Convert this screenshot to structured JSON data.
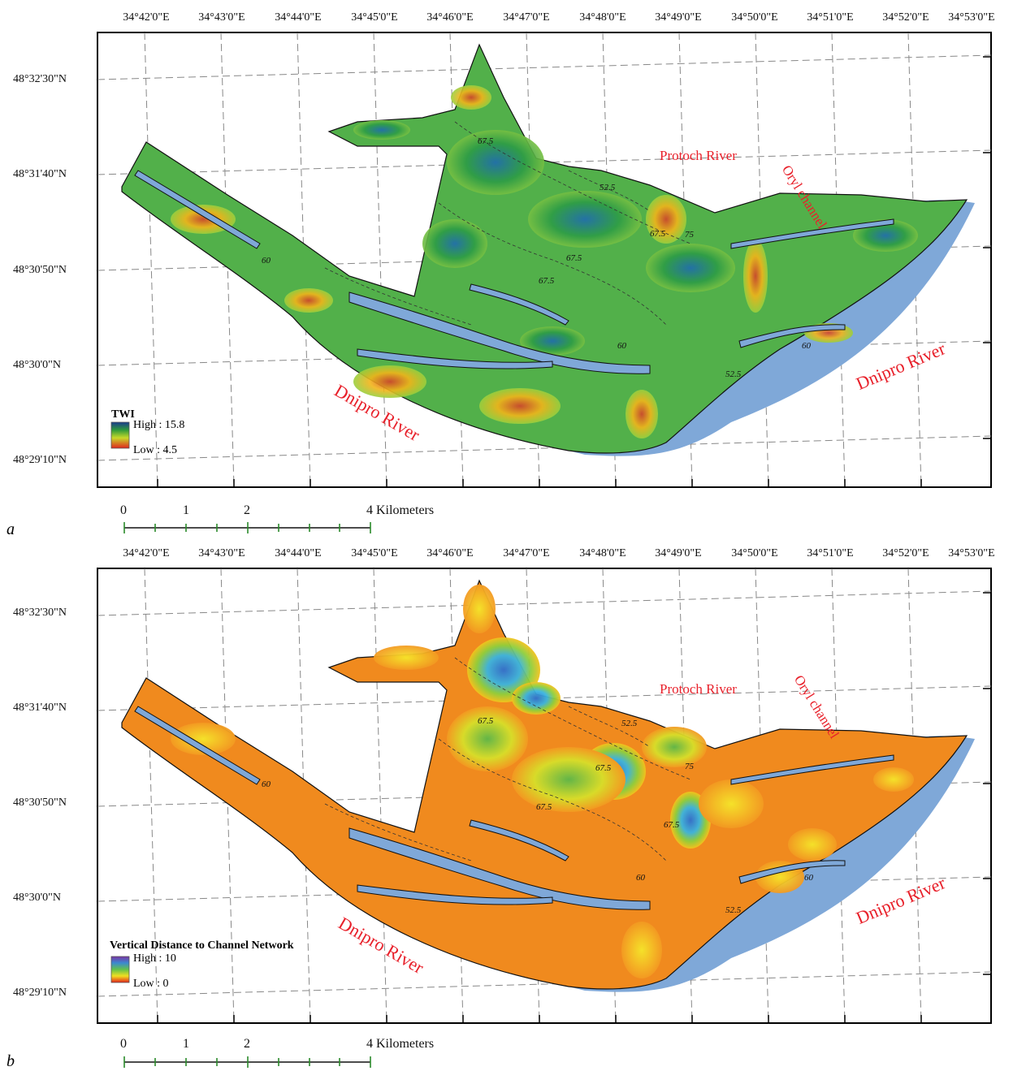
{
  "longitude_labels": [
    "34°42'0\"E",
    "34°43'0\"E",
    "34°44'0\"E",
    "34°45'0\"E",
    "34°46'0\"E",
    "34°47'0\"E",
    "34°48'0\"E",
    "34°49'0\"E",
    "34°50'0\"E",
    "34°51'0\"E",
    "34°52'0\"E",
    "34°53'0\"E"
  ],
  "latitude_labels": [
    "48°32'30\"N",
    "48°31'40\"N",
    "48°30'50\"N",
    "48°30'0\"N",
    "48°29'10\"N"
  ],
  "rivers": {
    "protoch": "Protoch River",
    "oryl": "Oryl channel",
    "dnipro": "Dnipro River"
  },
  "contours": [
    "67.5",
    "67.5",
    "67.5",
    "60",
    "60",
    "52.5",
    "52.5",
    "75",
    "60",
    "67.5"
  ],
  "scale_bar": {
    "ticks": [
      "0",
      "1",
      "2",
      "4 Kilometers"
    ]
  },
  "panel_a": {
    "letter": "a",
    "legend": {
      "title": "TWI",
      "high": "High : 15.8",
      "low": "Low : 4.5"
    }
  },
  "panel_b": {
    "letter": "b",
    "legend": {
      "title": "Vertical Distance to Channel Network",
      "high": "High : 10",
      "low": "Low : 0"
    }
  },
  "colors": {
    "water": "#7fa8d8",
    "twi_high": "#1a3c8f",
    "twi_mid": "#2f9a3a",
    "twi_low": "#e0261f",
    "vdcn_high": "#7a34a3",
    "vdcn_mid": "#f0e020",
    "vdcn_low": "#e5221a"
  }
}
